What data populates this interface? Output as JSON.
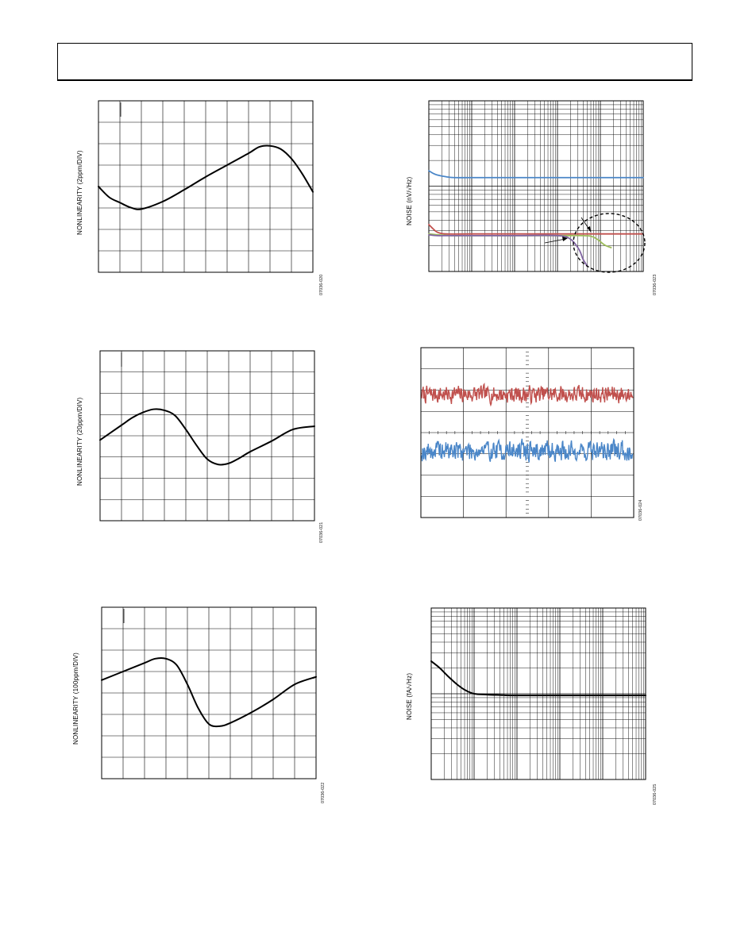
{
  "page": {
    "header": ""
  },
  "chart_data": [
    {
      "type": "line",
      "ylabel": "NONLINEARITY (2ppm/DIV)",
      "figure_id": "07036-020",
      "grid": true,
      "x_divisions": 10,
      "y_divisions": 8,
      "xlim": [
        0,
        10
      ],
      "ylim": [
        0,
        8
      ],
      "series": [
        {
          "x": [
            0,
            0.5,
            1,
            1.5,
            2,
            3,
            4,
            5,
            6,
            7,
            7.5,
            8,
            8.5,
            9,
            9.5,
            10
          ],
          "y": [
            4.0,
            3.5,
            3.25,
            3.02,
            2.95,
            3.3,
            3.85,
            4.45,
            5.0,
            5.55,
            5.85,
            5.9,
            5.75,
            5.3,
            4.6,
            3.75
          ]
        }
      ]
    },
    {
      "type": "line",
      "ylabel": "NONLINEARITY (20ppm/DIV)",
      "figure_id": "07036-021",
      "grid": true,
      "x_divisions": 10,
      "y_divisions": 8,
      "xlim": [
        0,
        10
      ],
      "ylim": [
        0,
        8
      ],
      "series": [
        {
          "x": [
            0,
            1,
            1.5,
            2,
            2.5,
            3,
            3.5,
            4,
            4.5,
            5,
            5.5,
            6,
            6.5,
            7,
            8,
            9,
            10
          ],
          "y": [
            3.8,
            4.5,
            4.85,
            5.1,
            5.25,
            5.2,
            4.95,
            4.3,
            3.55,
            2.9,
            2.65,
            2.7,
            2.95,
            3.25,
            3.75,
            4.3,
            4.45
          ]
        }
      ]
    },
    {
      "type": "line",
      "ylabel": "NONLINEARITY (100ppm/DIV)",
      "figure_id": "07036-022",
      "grid": true,
      "x_divisions": 10,
      "y_divisions": 8,
      "xlim": [
        0,
        10
      ],
      "ylim": [
        0,
        8
      ],
      "series": [
        {
          "x": [
            0,
            1,
            2,
            2.5,
            3,
            3.5,
            4,
            4.5,
            5,
            5.5,
            6,
            7,
            8,
            9,
            10
          ],
          "y": [
            4.6,
            5.0,
            5.4,
            5.6,
            5.6,
            5.3,
            4.4,
            3.3,
            2.55,
            2.45,
            2.6,
            3.1,
            3.7,
            4.4,
            4.75
          ]
        }
      ]
    },
    {
      "type": "line",
      "ylabel": "NOISE (nV/√Hz)",
      "figure_id": "07036-023",
      "grid": true,
      "log_x": true,
      "x_decades": 5,
      "y_decades": 2,
      "xlim": [
        0,
        5
      ],
      "ylim": [
        0,
        2
      ],
      "series": [
        {
          "color": "#4a86c8",
          "x": [
            0,
            0.1,
            0.2,
            0.4,
            0.6,
            1,
            2,
            3,
            4,
            5
          ],
          "y": [
            1.18,
            1.15,
            1.13,
            1.11,
            1.1,
            1.1,
            1.1,
            1.1,
            1.1,
            1.1
          ]
        },
        {
          "color": "#c0504d",
          "x": [
            0,
            0.1,
            0.2,
            0.4,
            1,
            2,
            3,
            4,
            5
          ],
          "y": [
            0.55,
            0.5,
            0.46,
            0.44,
            0.44,
            0.44,
            0.44,
            0.44,
            0.44
          ]
        },
        {
          "color": "#9bbb59",
          "x": [
            0,
            0.2,
            0.5,
            1,
            2,
            3,
            3.6,
            3.8,
            3.95,
            4.1,
            4.25
          ],
          "y": [
            0.44,
            0.43,
            0.42,
            0.42,
            0.42,
            0.42,
            0.42,
            0.41,
            0.37,
            0.31,
            0.28
          ]
        },
        {
          "color": "#8064a2",
          "x": [
            0,
            0.2,
            0.5,
            1,
            2,
            3,
            3.3,
            3.5,
            3.6,
            3.7
          ],
          "y": [
            0.43,
            0.42,
            0.42,
            0.42,
            0.42,
            0.42,
            0.38,
            0.26,
            0.14,
            0.06
          ]
        }
      ]
    },
    {
      "type": "line",
      "figure_id": "07036-024",
      "grid": true,
      "x_divisions": 5,
      "y_divisions": 8,
      "xlim": [
        0,
        500
      ],
      "ylim": [
        0,
        8
      ],
      "series": [
        {
          "color": "#c0504d",
          "center": 5.8,
          "amp": 0.42,
          "seed": 7
        },
        {
          "color": "#4a86c8",
          "center": 3.15,
          "amp": 0.5,
          "seed": 19
        }
      ]
    },
    {
      "type": "line",
      "ylabel": "NOISE (fA/√Hz)",
      "figure_id": "07036-025",
      "grid": true,
      "log_x": true,
      "x_decades": 5,
      "y_decades": 2,
      "xlim": [
        0,
        5
      ],
      "ylim": [
        0,
        2
      ],
      "series": [
        {
          "color": "#000000",
          "x": [
            0,
            0.2,
            0.4,
            0.6,
            0.8,
            1,
            1.3,
            1.6,
            2,
            3,
            4,
            5
          ],
          "y": [
            1.38,
            1.3,
            1.2,
            1.11,
            1.04,
            1.0,
            0.99,
            0.985,
            0.98,
            0.98,
            0.98,
            0.98
          ]
        }
      ]
    }
  ]
}
